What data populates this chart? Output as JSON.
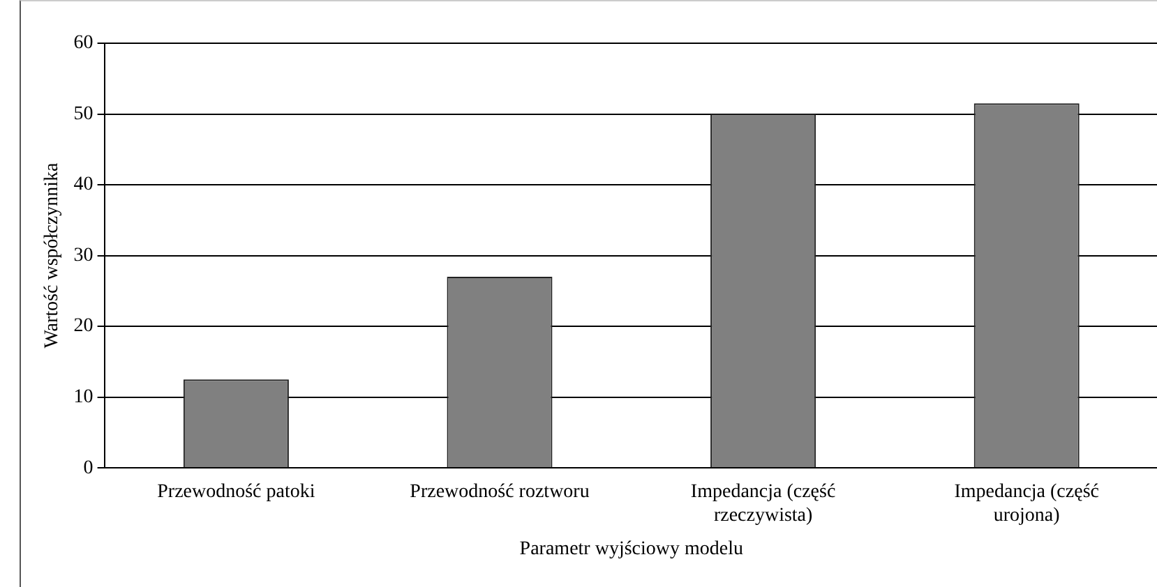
{
  "chart_data": {
    "type": "bar",
    "xlabel": "Parametr wyjściowy modelu",
    "ylabel": "Wartość współczynnika",
    "categories": [
      "Przewodność patoki",
      "Przewodność roztworu",
      "Impedancja (część rzeczywista)",
      "Impedancja (część urojona)"
    ],
    "values": [
      12.5,
      27,
      50,
      51.5
    ],
    "color": "#808080",
    "ylim": [
      0,
      60
    ],
    "yticks": [
      0,
      10,
      20,
      30,
      40,
      50,
      60
    ],
    "grid": "y",
    "legend": false
  }
}
